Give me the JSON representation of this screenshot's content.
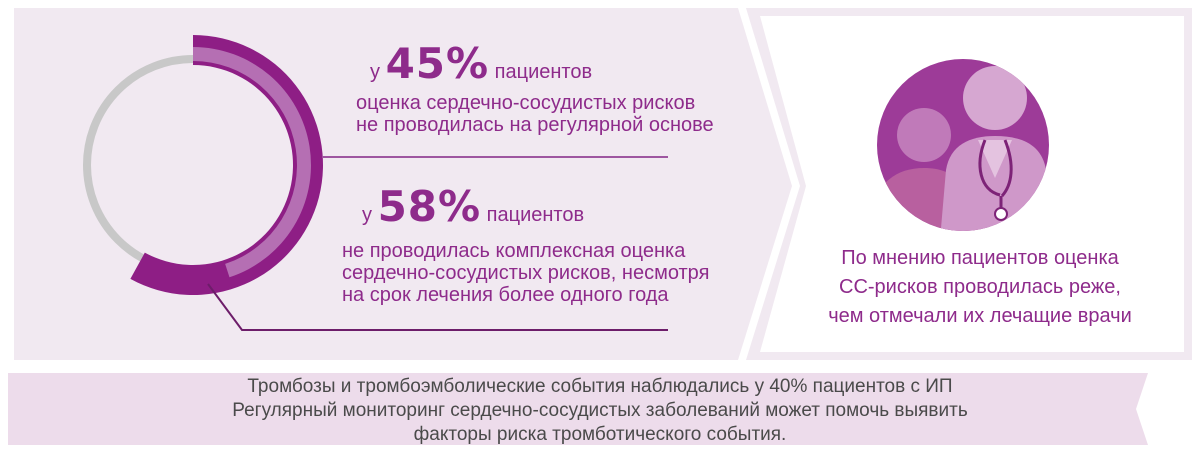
{
  "stats": [
    {
      "prefix": "у",
      "value": "45%",
      "suffix": "пациентов",
      "desc_lines": [
        "оценка сердечно-сосудистых рисков",
        "не проводилась на регулярной основе"
      ],
      "ring_fraction": 0.45
    },
    {
      "prefix": "у",
      "value": "58%",
      "suffix": "пациентов",
      "desc_lines": [
        "не проводилась комплексная оценка",
        "сердечно-сосудистых рисков, несмотря",
        "на срок лечения более одного года"
      ],
      "ring_fraction": 0.58
    }
  ],
  "right_caption_lines": [
    "По мнению пациентов оценка",
    "СС-рисков проводилась реже,",
    "чем отмечали их лечащие врачи"
  ],
  "bottom_lines": [
    "Тромбозы и тромбоэмболические события наблюдались у 40% пациентов с ИП",
    "Регулярный мониторинг сердечно-сосудистых заболеваний может помочь выявить",
    "факторы риска тромботического события."
  ],
  "icon": "patient-doctor-icon",
  "colors": {
    "panel": "#f1e9f1",
    "band": "#eddceb",
    "accent_dark": "#8e1e85",
    "accent_light": "#b56fb3",
    "ring_gray": "#c8c8c8",
    "text_purple": "#8e2b8b"
  }
}
